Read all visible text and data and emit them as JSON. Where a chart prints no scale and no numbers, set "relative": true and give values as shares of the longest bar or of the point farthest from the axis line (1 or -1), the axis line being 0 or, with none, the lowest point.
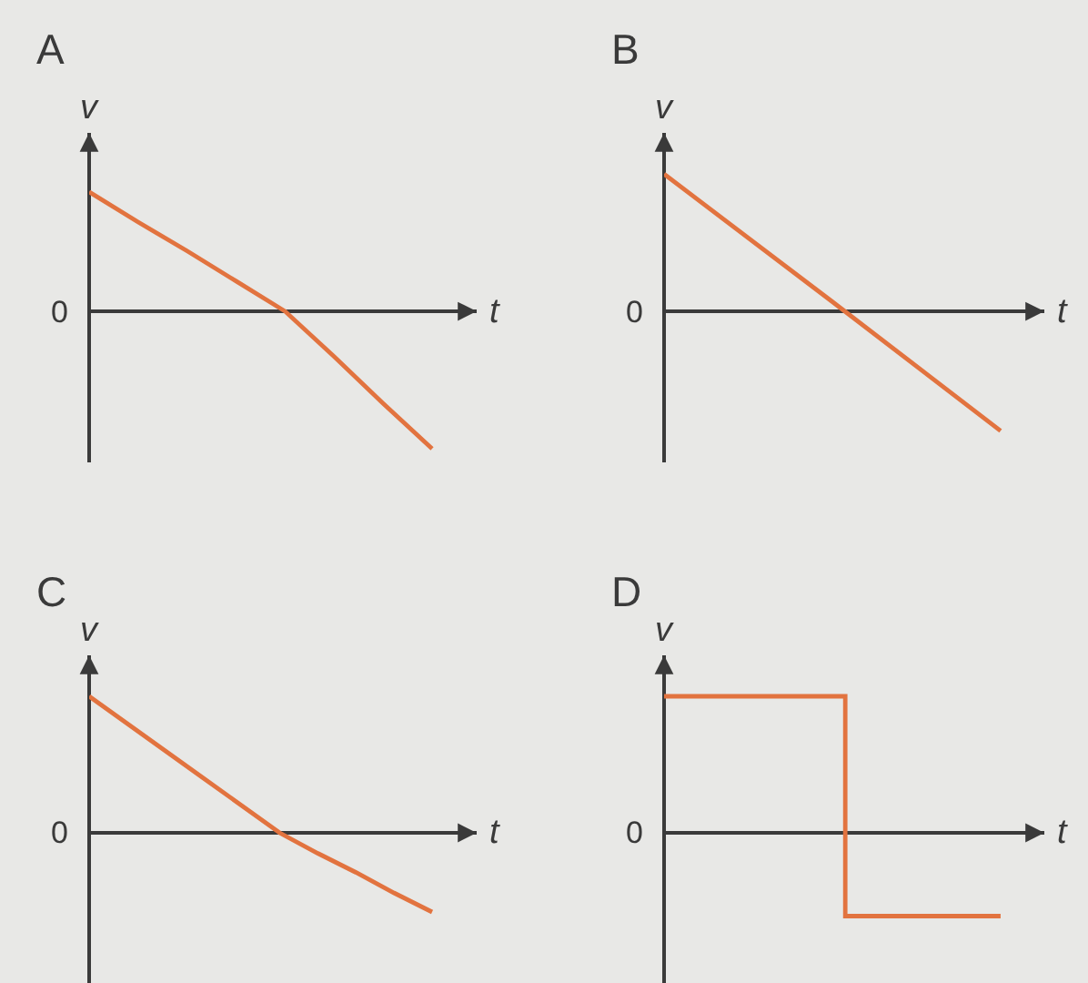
{
  "chart_data": [
    {
      "type": "line",
      "title": "A",
      "xlabel": "t",
      "ylabel": "v",
      "relative": true,
      "categories": [
        null,
        null,
        null,
        null,
        null,
        null,
        null,
        null
      ],
      "series": [
        {
          "color": "#e2733f",
          "values": [
            0.87,
            0.65,
            0.44,
            0.22,
            0,
            -0.33,
            -0.67,
            -1
          ]
        }
      ],
      "annotations": [
        "0"
      ]
    },
    {
      "type": "line",
      "title": "B",
      "xlabel": "t",
      "ylabel": "v",
      "relative": true,
      "categories": [
        null,
        null,
        null
      ],
      "series": [
        {
          "color": "#e2733f",
          "values": [
            1,
            0.07,
            -0.87
          ]
        }
      ],
      "annotations": [
        "0"
      ]
    },
    {
      "type": "line",
      "title": "C",
      "xlabel": "t",
      "ylabel": "v",
      "relative": true,
      "categories": [
        null,
        null,
        null,
        null,
        null,
        null,
        null,
        null,
        null,
        null
      ],
      "series": [
        {
          "color": "#e2733f",
          "values": [
            1,
            0.8,
            0.6,
            0.4,
            0.2,
            0,
            -0.15,
            -0.29,
            -0.44,
            -0.58
          ]
        }
      ],
      "annotations": [
        "0"
      ]
    },
    {
      "type": "step",
      "title": "D",
      "xlabel": "t",
      "ylabel": "v",
      "relative": true,
      "categories": [
        null,
        null,
        null,
        null,
        null,
        null,
        null,
        null,
        null,
        null,
        null,
        null,
        null,
        null
      ],
      "series": [
        {
          "color": "#e2733f",
          "values": [
            1,
            1,
            1,
            1,
            1,
            1,
            1,
            -0.61,
            -0.61,
            -0.61,
            -0.61,
            -0.61,
            -0.61,
            -0.61
          ]
        }
      ],
      "annotations": [
        "0"
      ]
    }
  ]
}
